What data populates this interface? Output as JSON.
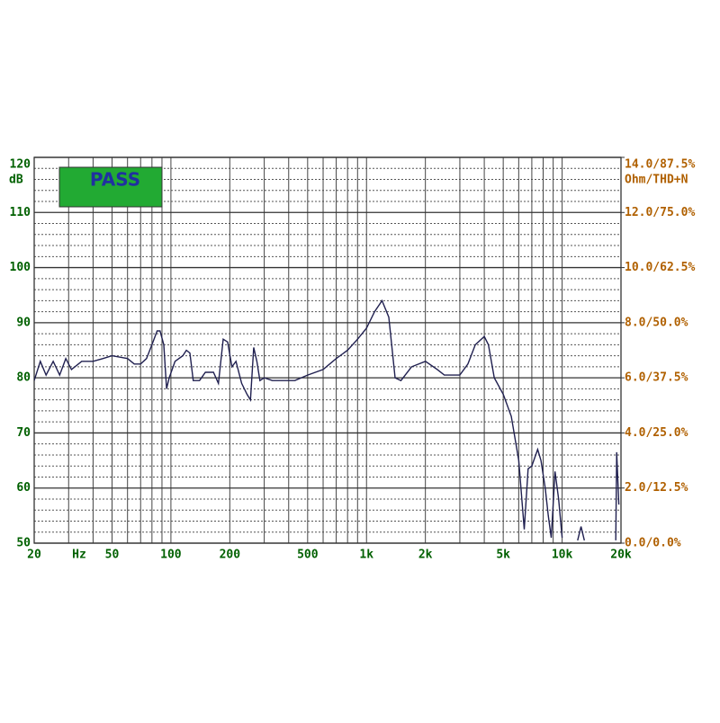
{
  "chart_data": {
    "type": "line",
    "badge": "PASS",
    "ylabel": "dB",
    "y2label": "Ohm/THD+N",
    "xlabel": "Hz",
    "log_x": true,
    "grid": true,
    "xlim": [
      20,
      20000
    ],
    "ylim": [
      50,
      120
    ],
    "y2lim": [
      0,
      14
    ],
    "xticks": [
      20,
      50,
      100,
      200,
      500,
      {
        "value": 1000,
        "label": "1k"
      },
      {
        "value": 2000,
        "label": "2k"
      },
      {
        "value": 5000,
        "label": "5k"
      },
      {
        "value": 10000,
        "label": "10k"
      },
      {
        "value": 20000,
        "label": "20k"
      }
    ],
    "xgrid": [
      20,
      30,
      40,
      50,
      60,
      70,
      80,
      90,
      100,
      200,
      300,
      400,
      500,
      600,
      700,
      800,
      900,
      1000,
      2000,
      3000,
      4000,
      5000,
      6000,
      7000,
      8000,
      9000,
      10000,
      20000
    ],
    "yticks": [
      50,
      60,
      70,
      80,
      90,
      100,
      110,
      120
    ],
    "yminor": [
      52,
      54,
      56,
      58,
      62,
      64,
      66,
      68,
      72,
      74,
      76,
      78,
      82,
      84,
      86,
      88,
      92,
      94,
      96,
      98,
      102,
      104,
      106,
      108,
      112,
      114,
      116,
      118
    ],
    "y2ticks": [
      {
        "value": 0,
        "label": "0.0/0.0%"
      },
      {
        "value": 2,
        "label": "2.0/12.5%"
      },
      {
        "value": 4,
        "label": "4.0/25.0%"
      },
      {
        "value": 6,
        "label": "6.0/37.5%"
      },
      {
        "value": 8,
        "label": "8.0/50.0%"
      },
      {
        "value": 10,
        "label": "10.0/62.5%"
      },
      {
        "value": 12,
        "label": "12.0/75.0%"
      },
      {
        "value": 14,
        "label": "14.0/87.5%"
      }
    ],
    "x": [
      20,
      21.5,
      23,
      25,
      27,
      29,
      31,
      35,
      40,
      45,
      50,
      60,
      65,
      70,
      75,
      80,
      85,
      88,
      92,
      95,
      98,
      105,
      115,
      120,
      125,
      130,
      140,
      150,
      165,
      175,
      185,
      195,
      205,
      215,
      230,
      245,
      255,
      265,
      275,
      285,
      300,
      330,
      380,
      430,
      500,
      600,
      700,
      800,
      900,
      1000,
      1100,
      1200,
      1300,
      1400,
      1500,
      1700,
      2000,
      2300,
      2500,
      3000,
      3300,
      3600,
      4000,
      4200,
      4500,
      5000,
      5500,
      6000,
      6400,
      6700,
      7000,
      7500,
      7800,
      8200,
      8500,
      8800,
      9200,
      9600,
      10000,
      10600,
      12000,
      12500,
      13000,
      13500,
      18800,
      19000,
      19500
    ],
    "series": [
      {
        "color": "#202050",
        "values": [
          79.5,
          83,
          80.5,
          83,
          80.5,
          83.5,
          81.5,
          83,
          83,
          83.5,
          84,
          83.5,
          82.5,
          82.5,
          83.5,
          86,
          88.5,
          88.5,
          86,
          78,
          80,
          83,
          84,
          85,
          84.5,
          79.5,
          79.5,
          81,
          81,
          79,
          87,
          86.5,
          82,
          83,
          79,
          77,
          76,
          85.5,
          83,
          79.5,
          80,
          79.5,
          79.5,
          79.5,
          80.5,
          81.5,
          83.5,
          85,
          87,
          89,
          92,
          94,
          91,
          80,
          79.5,
          82,
          83,
          81.5,
          80.5,
          80.5,
          82.5,
          86,
          87.5,
          86,
          80,
          77,
          73,
          65,
          52.5,
          63.5,
          64,
          67,
          65,
          60,
          55,
          51,
          63,
          58,
          51,
          null,
          50.5,
          53,
          50.5,
          null,
          50.5,
          66.5,
          57
        ]
      }
    ]
  }
}
